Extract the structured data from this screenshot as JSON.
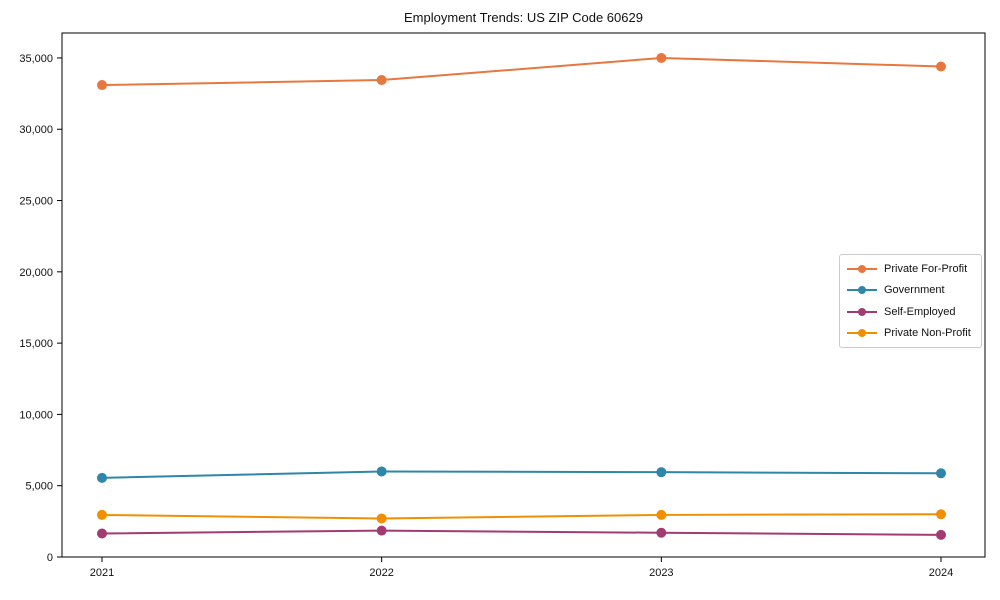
{
  "chart_data": {
    "type": "line",
    "title": "Employment Trends: US ZIP Code 60629",
    "xlabel": "",
    "ylabel": "",
    "categories": [
      "2021",
      "2022",
      "2023",
      "2024"
    ],
    "series": [
      {
        "name": "Private For-Profit",
        "color": "#E8773F",
        "values": [
          33100,
          33450,
          35000,
          34400
        ]
      },
      {
        "name": "Government",
        "color": "#2E86AB",
        "values": [
          5550,
          6000,
          5950,
          5870
        ]
      },
      {
        "name": "Self-Employed",
        "color": "#A23B72",
        "values": [
          1650,
          1850,
          1700,
          1550
        ]
      },
      {
        "name": "Private Non-Profit",
        "color": "#F18F01",
        "values": [
          2950,
          2700,
          2950,
          3000
        ]
      }
    ],
    "ylim": [
      0,
      36750
    ],
    "yticks": [
      {
        "value": 0,
        "label": "0"
      },
      {
        "value": 5000,
        "label": "5,000"
      },
      {
        "value": 10000,
        "label": "10,000"
      },
      {
        "value": 15000,
        "label": "15,000"
      },
      {
        "value": 20000,
        "label": "20,000"
      },
      {
        "value": 25000,
        "label": "25,000"
      },
      {
        "value": 30000,
        "label": "30,000"
      },
      {
        "value": 35000,
        "label": "35,000"
      }
    ],
    "grid": false,
    "marker": "circle",
    "legend_position": "center-right"
  }
}
